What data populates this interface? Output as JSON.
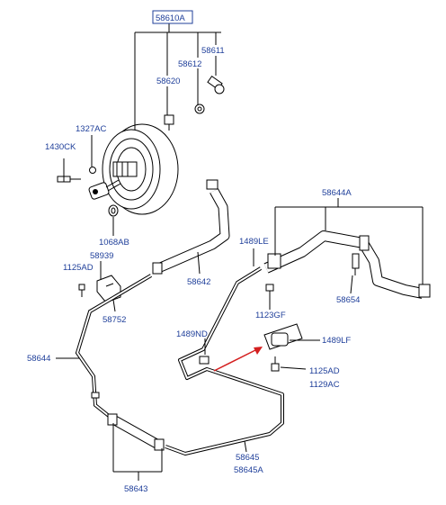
{
  "labels": {
    "p58610A": "58610A",
    "p58611": "58611",
    "p58612": "58612",
    "p58620": "58620",
    "p1327AC": "1327AC",
    "p1430CK": "1430CK",
    "p1068AB": "1068AB",
    "p58939": "58939",
    "p1125AD_left": "1125AD",
    "p58752": "58752",
    "p58644_left": "58644",
    "p58642": "58642",
    "p1489LE": "1489LE",
    "p58644A": "58644A",
    "p58654": "58654",
    "p1123GF": "1123GF",
    "p1489ND": "1489ND",
    "p1489LF": "1489LF",
    "p1125AD_right": "1125AD",
    "p1129AC": "1129AC",
    "p58645": "58645",
    "p58645A": "58645A",
    "p58643": "58643"
  },
  "colors": {
    "label": "#1f3f9a",
    "highlight_box": "#1f3f9a",
    "arrow": "#d42020",
    "line": "#000000"
  }
}
